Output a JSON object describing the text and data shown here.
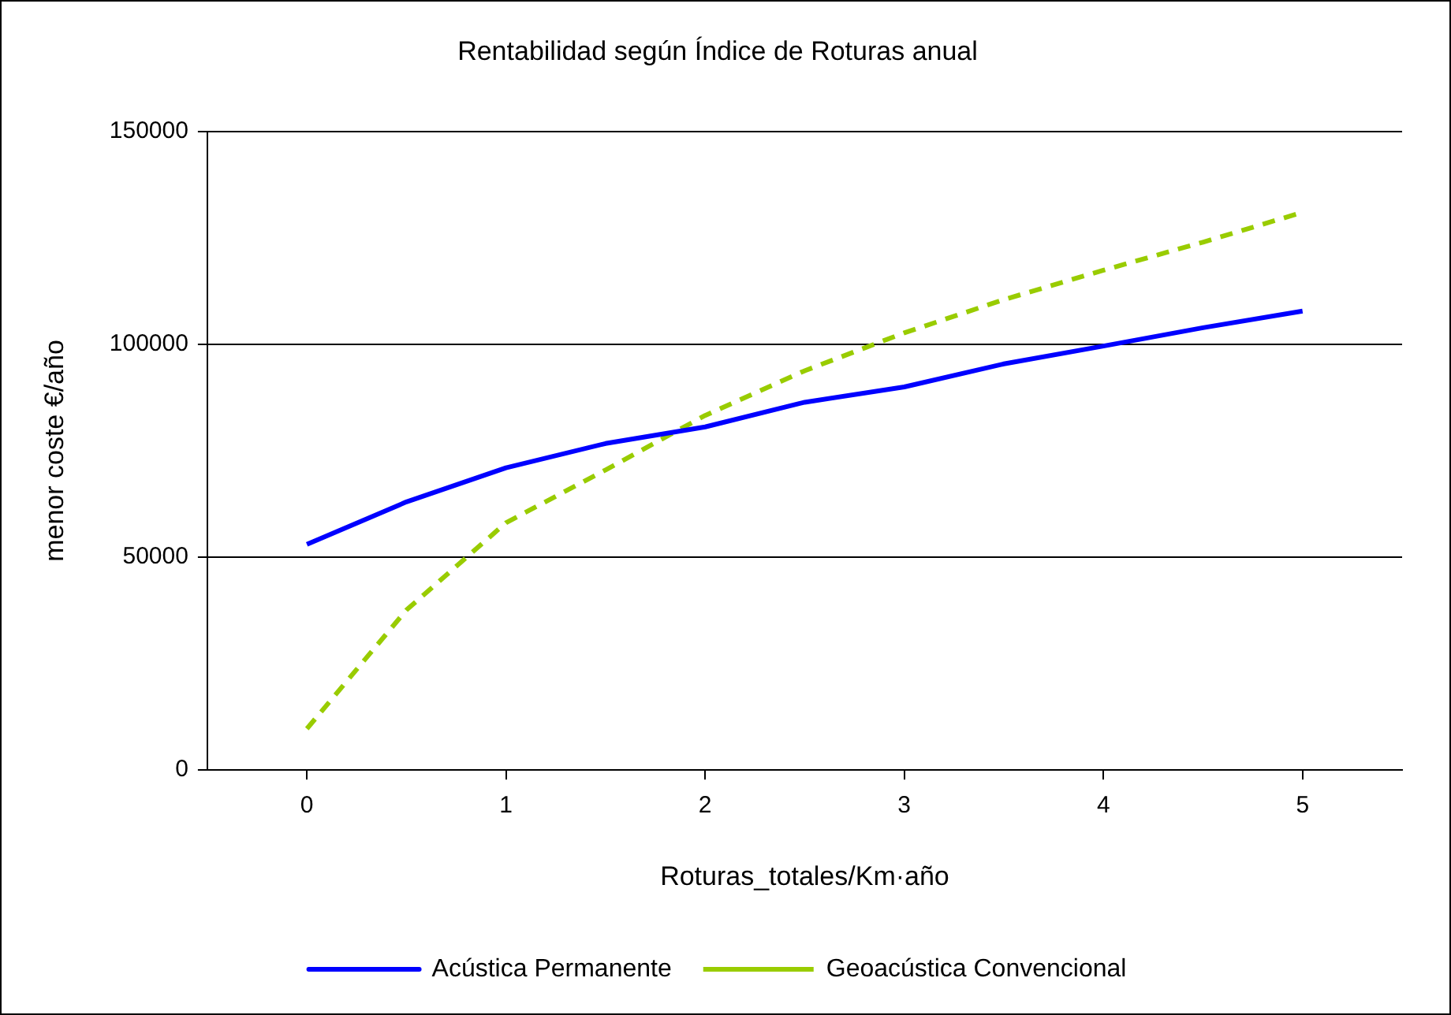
{
  "chart_data": {
    "type": "line",
    "title": "Rentabilidad según Índice de Roturas anual",
    "xlabel": "Roturas_totales/Km·año",
    "ylabel": "menor coste €/año",
    "x": [
      0,
      0.5,
      1,
      1.5,
      2,
      2.5,
      3,
      3.5,
      4,
      4.5,
      5
    ],
    "xlim": [
      -0.5,
      5.5
    ],
    "xticks": [
      0,
      1,
      2,
      3,
      4,
      5
    ],
    "ylim": [
      0,
      150000
    ],
    "yticks": [
      0,
      50000,
      100000,
      150000
    ],
    "series": [
      {
        "name": "Acústica Permanente",
        "color": "#0000ff",
        "line_style": "solid",
        "values": [
          53000,
          63000,
          71000,
          76700,
          80600,
          86400,
          90000,
          95400,
          99600,
          103900,
          107800
        ]
      },
      {
        "name": "Geoacústica Convencional",
        "color": "#99cc00",
        "line_style": "dashed",
        "values": [
          9700,
          37600,
          58100,
          70500,
          83300,
          93800,
          102700,
          110500,
          117400,
          124000,
          131000
        ]
      }
    ],
    "grid": "y",
    "legend": "bottom",
    "marker": "none"
  }
}
